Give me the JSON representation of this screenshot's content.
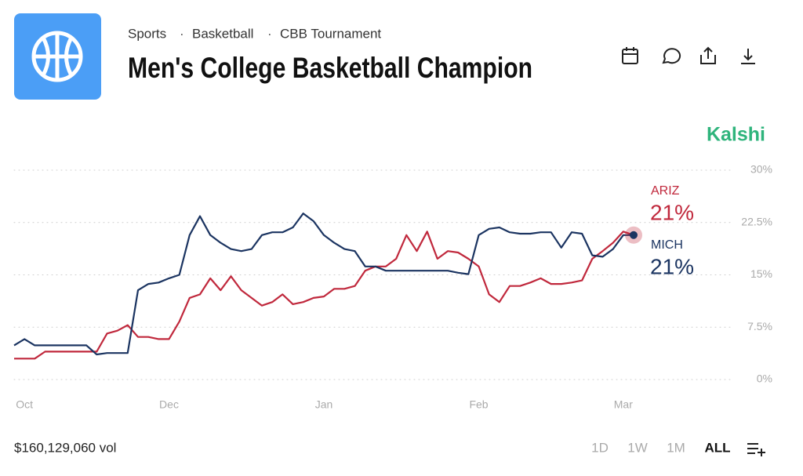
{
  "header": {
    "breadcrumb": [
      "Sports",
      "Basketball",
      "CBB Tournament"
    ],
    "title": "Men's College Basketball Champion",
    "brand": "Kalshi"
  },
  "chart_data": {
    "type": "line",
    "categories": [
      null,
      "Oct",
      null,
      null,
      null,
      null,
      null,
      null,
      null,
      null,
      null,
      null,
      null,
      null,
      null,
      "Dec",
      null,
      null,
      null,
      null,
      null,
      null,
      null,
      null,
      null,
      null,
      null,
      null,
      null,
      null,
      "Jan",
      null,
      null,
      null,
      null,
      null,
      null,
      null,
      null,
      null,
      null,
      null,
      null,
      null,
      null,
      "Feb",
      null,
      null,
      null,
      null,
      null,
      null,
      null,
      null,
      null,
      null,
      null,
      null,
      null,
      "Mar",
      null
    ],
    "series": [
      {
        "name": "ARIZ",
        "color": "#c0283c",
        "end_label": "21%",
        "values": [
          3.0,
          3.0,
          3.0,
          4.0,
          4.0,
          4.0,
          4.0,
          4.0,
          4.0,
          6.6,
          7.0,
          7.8,
          6.1,
          6.1,
          5.8,
          5.8,
          8.3,
          11.7,
          12.2,
          14.5,
          12.8,
          14.8,
          12.8,
          11.7,
          10.6,
          11.1,
          12.2,
          10.8,
          11.1,
          11.7,
          11.9,
          13.0,
          13.0,
          13.4,
          15.6,
          16.2,
          16.2,
          17.3,
          20.7,
          18.4,
          21.2,
          17.3,
          18.4,
          18.2,
          17.3,
          16.2,
          12.2,
          11.1,
          13.4,
          13.4,
          13.9,
          14.5,
          13.7,
          13.7,
          13.9,
          14.2,
          17.3,
          18.4,
          19.6,
          21.2,
          20.7
        ]
      },
      {
        "name": "MICH",
        "color": "#1b3461",
        "end_label": "21%",
        "values": [
          4.9,
          5.8,
          4.9,
          4.9,
          4.9,
          4.9,
          4.9,
          4.9,
          3.6,
          3.8,
          3.8,
          3.8,
          12.8,
          13.7,
          13.9,
          14.5,
          15.0,
          20.7,
          23.4,
          20.7,
          19.6,
          18.7,
          18.4,
          18.7,
          20.7,
          21.1,
          21.1,
          21.8,
          23.8,
          22.7,
          20.7,
          19.6,
          18.7,
          18.4,
          16.2,
          16.2,
          15.6,
          15.6,
          15.6,
          15.6,
          15.6,
          15.6,
          15.6,
          15.3,
          15.1,
          20.7,
          21.6,
          21.8,
          21.1,
          20.9,
          20.9,
          21.1,
          21.1,
          18.9,
          21.1,
          20.9,
          17.8,
          17.6,
          18.7,
          20.7,
          20.7
        ]
      }
    ],
    "ylim": [
      0,
      30
    ],
    "yticks": [
      {
        "value": 0,
        "label": "0%"
      },
      {
        "value": 7.5,
        "label": "7.5%"
      },
      {
        "value": 15,
        "label": "15%"
      },
      {
        "value": 22.5,
        "label": "22.5%"
      },
      {
        "value": 30,
        "label": "30%"
      }
    ],
    "grid": true
  },
  "footer": {
    "volume": "$160,129,060 vol",
    "ranges": [
      "1D",
      "1W",
      "1M",
      "ALL"
    ]
  }
}
